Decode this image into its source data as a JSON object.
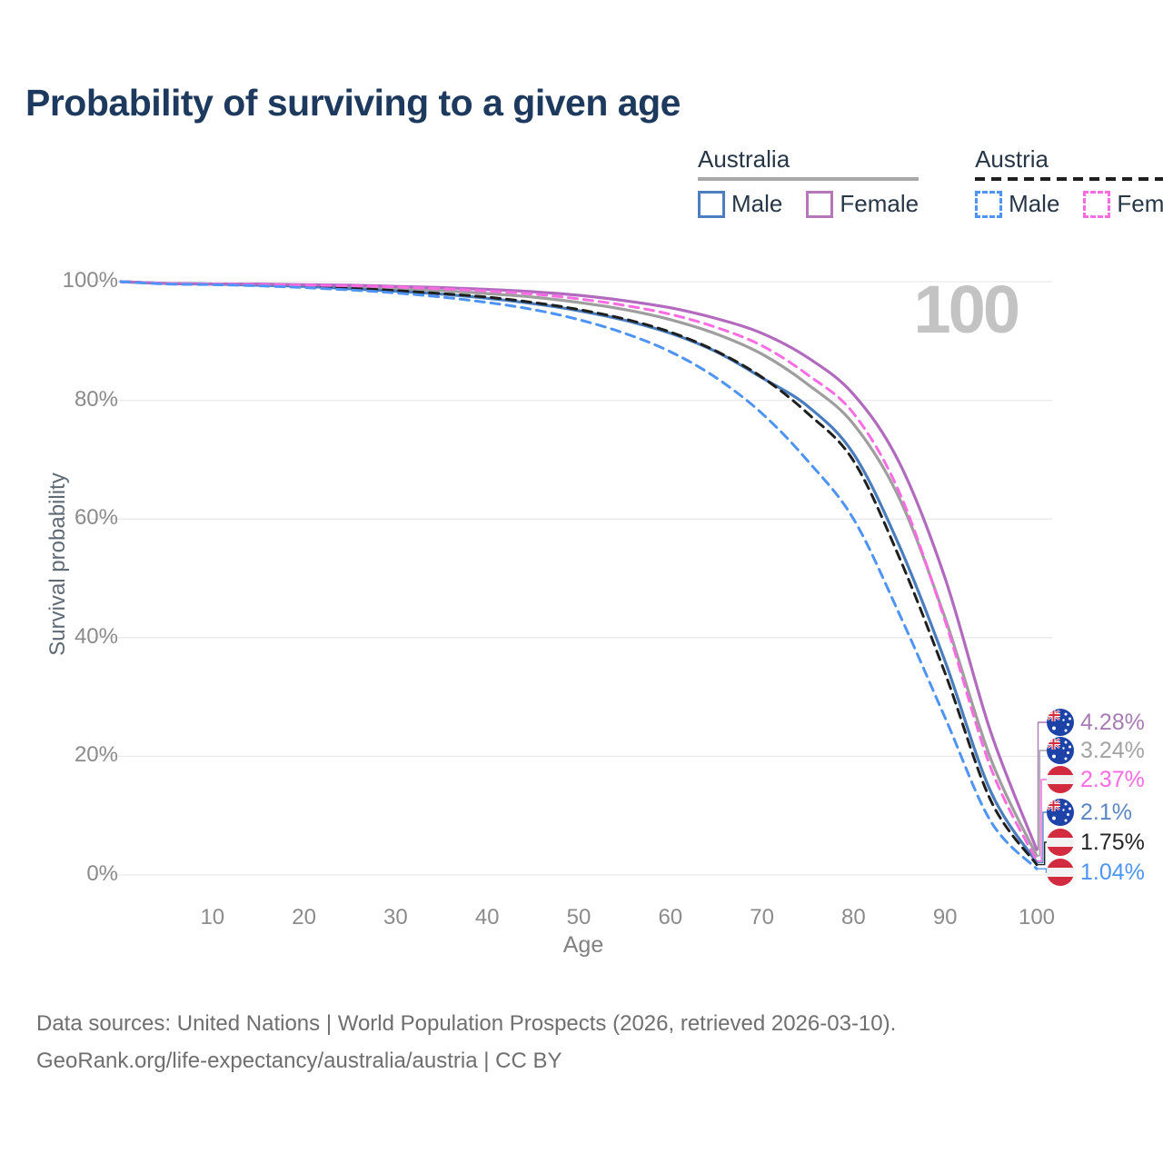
{
  "title": "Probability of surviving to a given age",
  "legend": {
    "groups": [
      {
        "country": "Australia",
        "line_style": "solid",
        "items": [
          {
            "label": "Male",
            "color": "#4d7ebf",
            "dashed": false
          },
          {
            "label": "Female",
            "color": "#b478b8",
            "dashed": false
          }
        ]
      },
      {
        "country": "Austria",
        "line_style": "dashed",
        "items": [
          {
            "label": "Male",
            "color": "#4d94f5",
            "dashed": true
          },
          {
            "label": "Female",
            "color": "#fb6ce3",
            "dashed": true
          }
        ]
      }
    ]
  },
  "chart": {
    "ylabel": "Survival probability",
    "xlabel": "Age",
    "watermark": "100",
    "grid_color": "#eaeaea",
    "y_ticks": [
      "100%",
      "80%",
      "60%",
      "40%",
      "20%",
      "0%"
    ],
    "x_ticks": [
      "10",
      "20",
      "30",
      "40",
      "50",
      "60",
      "70",
      "80",
      "90",
      "100"
    ]
  },
  "chart_data": {
    "type": "line",
    "title": "Probability of surviving to a given age",
    "xlabel": "Age",
    "ylabel": "Survival probability",
    "xlim": [
      0,
      100
    ],
    "ylim": [
      0,
      100
    ],
    "grid": "horizontal",
    "legend_position": "top-right",
    "x_ages": [
      0,
      5,
      10,
      15,
      20,
      25,
      30,
      35,
      40,
      45,
      50,
      55,
      60,
      65,
      70,
      75,
      80,
      85,
      90,
      95,
      100
    ],
    "y_tick_values": [
      100,
      80,
      60,
      40,
      20,
      0
    ],
    "x_tick_values": [
      10,
      20,
      30,
      40,
      50,
      60,
      70,
      80,
      90,
      100
    ],
    "series": [
      {
        "name": "Australia Female",
        "country": "Australia",
        "sex": "Female",
        "color": "#b26abe",
        "label_color": "#a87cb3",
        "dashed": false,
        "flag": "australia",
        "end_label": "4.28%",
        "end_value": 4.28,
        "values": [
          100,
          99.7,
          99.6,
          99.6,
          99.5,
          99.4,
          99.2,
          99.0,
          98.7,
          98.3,
          97.7,
          96.8,
          95.6,
          93.8,
          91.3,
          87.2,
          81.0,
          69.5,
          50.0,
          24.0,
          4.28
        ]
      },
      {
        "name": "Australia Both sexes",
        "country": "Australia",
        "sex": "Both",
        "color": "#9e9e9e",
        "label_color": "#a3a3a3",
        "dashed": false,
        "flag": "australia",
        "end_label": "3.24%",
        "end_value": 3.24,
        "values": [
          100,
          99.7,
          99.6,
          99.5,
          99.3,
          99.1,
          98.8,
          98.5,
          98.0,
          97.4,
          96.5,
          95.3,
          93.6,
          91.2,
          87.8,
          82.7,
          76.0,
          63.5,
          43.3,
          19.5,
          3.24
        ]
      },
      {
        "name": "Austria Female",
        "country": "Austria",
        "sex": "Female",
        "color": "#fb6ce3",
        "label_color": "#fb6ce3",
        "dashed": true,
        "flag": "austria",
        "end_label": "2.37%",
        "end_value": 2.37,
        "values": [
          100,
          99.7,
          99.6,
          99.5,
          99.4,
          99.3,
          99.1,
          98.8,
          98.4,
          97.9,
          97.1,
          96.0,
          94.5,
          92.3,
          89.2,
          84.3,
          77.8,
          64.5,
          42.8,
          18.0,
          2.37
        ]
      },
      {
        "name": "Australia Male",
        "country": "Australia",
        "sex": "Male",
        "color": "#4a7dbd",
        "label_color": "#5b86c4",
        "dashed": false,
        "flag": "australia",
        "end_label": "2.1%",
        "end_value": 2.1,
        "values": [
          100,
          99.7,
          99.6,
          99.4,
          99.2,
          98.8,
          98.4,
          97.9,
          97.2,
          96.3,
          95.1,
          93.5,
          91.3,
          88.2,
          83.8,
          79.0,
          71.0,
          55.5,
          36.0,
          14.0,
          2.1
        ]
      },
      {
        "name": "Austria Both sexes",
        "country": "Austria",
        "sex": "Both",
        "color": "#1f1f1f",
        "label_color": "#262626",
        "dashed": true,
        "flag": "austria",
        "end_label": "1.75%",
        "end_value": 1.75,
        "values": [
          100,
          99.7,
          99.6,
          99.4,
          99.2,
          98.9,
          98.5,
          98.0,
          97.4,
          96.5,
          95.3,
          93.7,
          91.5,
          88.3,
          83.9,
          77.8,
          69.8,
          53.5,
          34.0,
          12.5,
          1.75
        ]
      },
      {
        "name": "Austria Male",
        "country": "Austria",
        "sex": "Male",
        "color": "#4d94f5",
        "label_color": "#4d94f5",
        "dashed": true,
        "flag": "austria",
        "end_label": "1.04%",
        "end_value": 1.04,
        "values": [
          100,
          99.6,
          99.5,
          99.3,
          99.0,
          98.6,
          98.1,
          97.4,
          96.5,
          95.3,
          93.6,
          91.3,
          88.2,
          83.8,
          77.8,
          69.8,
          60.0,
          44.0,
          26.5,
          9.0,
          1.04
        ]
      }
    ]
  },
  "footer": {
    "line1": "Data sources: United Nations | World Population Prospects (2026, retrieved 2026-03-10).",
    "line2": "GeoRank.org/life-expectancy/australia/austria | CC BY"
  }
}
